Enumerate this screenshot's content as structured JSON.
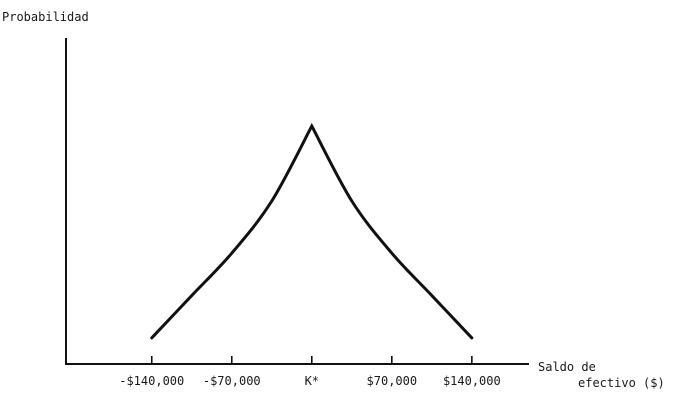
{
  "chart_data": {
    "type": "line",
    "ylabel": "Probabilidad",
    "xlabel_line1": "Saldo de",
    "xlabel_line2": "efectivo ($)",
    "x_ticks": [
      "-$140,000",
      "-$70,000",
      "K*",
      "$70,000",
      "$140,000"
    ],
    "x_tick_values": [
      -140000,
      -70000,
      0,
      70000,
      140000
    ],
    "xlim": [
      -215000,
      190000
    ],
    "ylim": [
      0,
      1
    ],
    "series": [
      {
        "x": [
          -140000,
          -105000,
          -70000,
          -35000,
          0,
          35000,
          70000,
          105000,
          140000
        ],
        "values": [
          0.08,
          0.21,
          0.34,
          0.5,
          0.73,
          0.5,
          0.34,
          0.21,
          0.08
        ]
      }
    ],
    "colors": {
      "ink": "#111111",
      "background": "#ffffff"
    }
  }
}
